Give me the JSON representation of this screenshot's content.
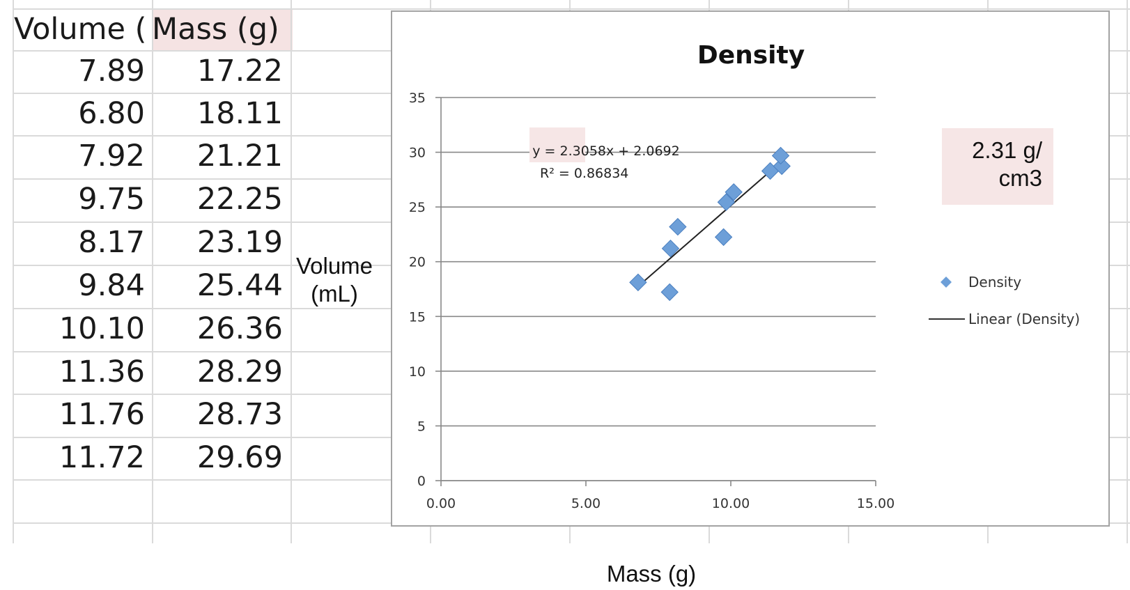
{
  "table": {
    "headers": [
      "Volume (mL)",
      "Mass (g)"
    ],
    "rows": [
      [
        "7.89",
        "17.22"
      ],
      [
        "6.80",
        "18.11"
      ],
      [
        "7.92",
        "21.21"
      ],
      [
        "9.75",
        "22.25"
      ],
      [
        "8.17",
        "23.19"
      ],
      [
        "9.84",
        "25.44"
      ],
      [
        "10.10",
        "26.36"
      ],
      [
        "11.36",
        "28.29"
      ],
      [
        "11.76",
        "28.73"
      ],
      [
        "11.72",
        "29.69"
      ]
    ]
  },
  "axis_labels": {
    "y": "Volume (mL)",
    "x": "Mass (g)"
  },
  "density_note": "2.31 g/ cm3",
  "chart_data": {
    "type": "scatter",
    "title": "Density",
    "xlim": [
      0,
      15
    ],
    "ylim": [
      0,
      35
    ],
    "x_ticks": [
      "0.00",
      "5.00",
      "10.00",
      "15.00"
    ],
    "y_ticks": [
      "0",
      "5",
      "10",
      "15",
      "20",
      "25",
      "30",
      "35"
    ],
    "grid": true,
    "legend_position": "right",
    "series": [
      {
        "name": "Density",
        "color": "#6d9fd8",
        "marker": "diamond",
        "points": [
          [
            7.89,
            17.22
          ],
          [
            6.8,
            18.11
          ],
          [
            7.92,
            21.21
          ],
          [
            9.75,
            22.25
          ],
          [
            8.17,
            23.19
          ],
          [
            9.84,
            25.44
          ],
          [
            10.1,
            26.36
          ],
          [
            11.36,
            28.29
          ],
          [
            11.76,
            28.73
          ],
          [
            11.72,
            29.69
          ]
        ]
      }
    ],
    "trendline": {
      "name": "Linear (Density)",
      "slope": 2.3058,
      "intercept": 2.0692,
      "x_range": [
        6.8,
        11.76
      ],
      "color": "#222222"
    },
    "equation_text": "y = 2.3058x + 2.0692",
    "r2_text": "R² = 0.86834"
  }
}
